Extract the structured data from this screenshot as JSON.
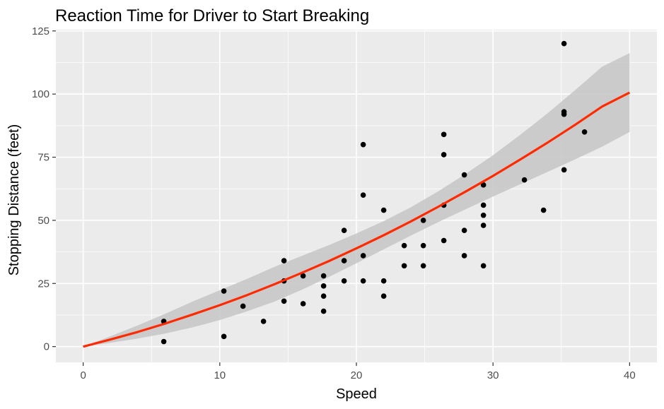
{
  "chart_data": {
    "type": "scatter",
    "title": "Reaction Time for Driver to Start Breaking",
    "xlabel": "Speed",
    "ylabel": "Stopping Distance (feet)",
    "xlim": [
      -2,
      42
    ],
    "ylim": [
      -6.25,
      125.5
    ],
    "x_ticks": [
      0,
      10,
      20,
      30,
      40
    ],
    "y_ticks": [
      0,
      25,
      50,
      75,
      100,
      125
    ],
    "grid": true,
    "points": [
      {
        "x": 5.9,
        "y": 2
      },
      {
        "x": 5.9,
        "y": 10
      },
      {
        "x": 10.3,
        "y": 4
      },
      {
        "x": 10.3,
        "y": 22
      },
      {
        "x": 11.7,
        "y": 16
      },
      {
        "x": 13.2,
        "y": 10
      },
      {
        "x": 14.7,
        "y": 18
      },
      {
        "x": 14.7,
        "y": 26
      },
      {
        "x": 14.7,
        "y": 34
      },
      {
        "x": 16.1,
        "y": 17
      },
      {
        "x": 16.1,
        "y": 28
      },
      {
        "x": 17.6,
        "y": 14
      },
      {
        "x": 17.6,
        "y": 20
      },
      {
        "x": 17.6,
        "y": 24
      },
      {
        "x": 17.6,
        "y": 28
      },
      {
        "x": 19.1,
        "y": 26
      },
      {
        "x": 19.1,
        "y": 34
      },
      {
        "x": 19.1,
        "y": 46
      },
      {
        "x": 20.5,
        "y": 26
      },
      {
        "x": 20.5,
        "y": 36
      },
      {
        "x": 20.5,
        "y": 60
      },
      {
        "x": 20.5,
        "y": 80
      },
      {
        "x": 22.0,
        "y": 20
      },
      {
        "x": 22.0,
        "y": 26
      },
      {
        "x": 22.0,
        "y": 54
      },
      {
        "x": 23.5,
        "y": 32
      },
      {
        "x": 23.5,
        "y": 40
      },
      {
        "x": 24.9,
        "y": 32
      },
      {
        "x": 24.9,
        "y": 40
      },
      {
        "x": 24.9,
        "y": 50
      },
      {
        "x": 26.4,
        "y": 42
      },
      {
        "x": 26.4,
        "y": 56
      },
      {
        "x": 26.4,
        "y": 76
      },
      {
        "x": 26.4,
        "y": 84
      },
      {
        "x": 27.9,
        "y": 36
      },
      {
        "x": 27.9,
        "y": 46
      },
      {
        "x": 27.9,
        "y": 68
      },
      {
        "x": 29.3,
        "y": 32
      },
      {
        "x": 29.3,
        "y": 48
      },
      {
        "x": 29.3,
        "y": 52
      },
      {
        "x": 29.3,
        "y": 56
      },
      {
        "x": 29.3,
        "y": 64
      },
      {
        "x": 32.3,
        "y": 66
      },
      {
        "x": 33.7,
        "y": 54
      },
      {
        "x": 35.2,
        "y": 70
      },
      {
        "x": 35.2,
        "y": 92
      },
      {
        "x": 35.2,
        "y": 93
      },
      {
        "x": 35.2,
        "y": 120
      },
      {
        "x": 36.7,
        "y": 85
      }
    ],
    "fit": {
      "type": "line",
      "x": [
        0,
        2,
        4,
        6,
        8,
        10,
        12,
        14,
        16,
        18,
        20,
        22,
        24,
        26,
        28,
        30,
        32,
        34,
        36,
        38,
        40
      ],
      "y": [
        0,
        2.8,
        5.8,
        9.1,
        12.7,
        16.4,
        20.4,
        24.7,
        29.2,
        33.9,
        38.9,
        44.1,
        49.6,
        55.4,
        61.4,
        67.6,
        74.1,
        80.8,
        87.8,
        95.1,
        100.6
      ],
      "lower": [
        0,
        1.5,
        3.2,
        5.2,
        7.6,
        10.5,
        14.0,
        17.8,
        22.5,
        27.6,
        33.0,
        38.5,
        44.0,
        49.3,
        54.4,
        59.4,
        64.3,
        69.2,
        74.1,
        79.2,
        85.0
      ],
      "upper": [
        0,
        4.1,
        8.4,
        13.0,
        17.8,
        22.3,
        26.8,
        31.6,
        35.9,
        40.2,
        44.8,
        49.7,
        55.2,
        61.5,
        68.4,
        75.8,
        83.9,
        92.4,
        101.5,
        110.9,
        116.2
      ],
      "line_color": "#ff2a00",
      "ribbon_color": "#c6c6c6"
    },
    "panel_color": "#ebebeb",
    "grid_color": "#ffffff",
    "point_color": "#000000"
  }
}
